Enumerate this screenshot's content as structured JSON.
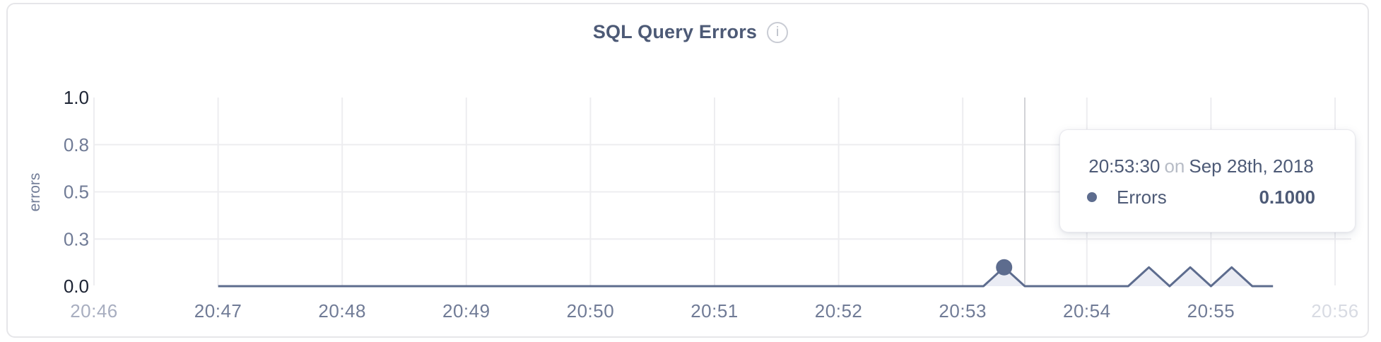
{
  "panel": {
    "title": "SQL Query Errors",
    "info_icon_glyph": "i"
  },
  "colors": {
    "accent": "#5d6c8e",
    "area_fill": "#eaecf4",
    "grid": "#ededf0",
    "crosshair": "#d2d3d7",
    "tick_strong": "#1c2333",
    "tick_normal": "#707b96",
    "tick_muted": "#a8aec0",
    "tick_faint": "#d8dbe3",
    "title_text": "#4d5a76",
    "tooltip_connector": "#b7bcc6"
  },
  "tooltip": {
    "time": "20:53:30",
    "connector": "on",
    "date": "Sep 28th, 2018",
    "series_label": "Errors",
    "value": "0.1000"
  },
  "chart_data": {
    "type": "line",
    "title": "SQL Query Errors",
    "xlabel": "",
    "ylabel": "errors",
    "ylim": [
      0,
      1
    ],
    "grid": true,
    "legend_position": "tooltip-only",
    "y_ticks": [
      {
        "value": 0,
        "label": "0.0",
        "tone": "strong"
      },
      {
        "value": 0.25,
        "label": "0.3",
        "tone": "normal"
      },
      {
        "value": 0.5,
        "label": "0.5",
        "tone": "normal"
      },
      {
        "value": 0.75,
        "label": "0.8",
        "tone": "normal"
      },
      {
        "value": 1,
        "label": "1.0",
        "tone": "strong"
      }
    ],
    "x_axis": {
      "ticks": [
        {
          "label": "20:46",
          "tone": "muted"
        },
        {
          "label": "20:47",
          "tone": "normal"
        },
        {
          "label": "20:48",
          "tone": "normal"
        },
        {
          "label": "20:49",
          "tone": "normal"
        },
        {
          "label": "20:50",
          "tone": "normal"
        },
        {
          "label": "20:51",
          "tone": "normal"
        },
        {
          "label": "20:52",
          "tone": "normal"
        },
        {
          "label": "20:53",
          "tone": "normal"
        },
        {
          "label": "20:54",
          "tone": "normal"
        },
        {
          "label": "20:55",
          "tone": "normal"
        },
        {
          "label": "20:56",
          "tone": "faint"
        }
      ]
    },
    "series": [
      {
        "name": "Errors",
        "points": [
          {
            "time": "20:47:00",
            "value": 0
          },
          {
            "time": "20:53:10",
            "value": 0
          },
          {
            "time": "20:53:20",
            "value": 0.1
          },
          {
            "time": "20:53:30",
            "value": 0
          },
          {
            "time": "20:54:20",
            "value": 0
          },
          {
            "time": "20:54:30",
            "value": 0.1
          },
          {
            "time": "20:54:40",
            "value": 0
          },
          {
            "time": "20:54:50",
            "value": 0.1
          },
          {
            "time": "20:55:00",
            "value": 0
          },
          {
            "time": "20:55:10",
            "value": 0.1
          },
          {
            "time": "20:55:20",
            "value": 0
          },
          {
            "time": "20:55:30",
            "value": 0
          }
        ]
      }
    ],
    "hover": {
      "marker_time": "20:53:20",
      "marker_value": 0.1,
      "crosshair_time": "20:53:30"
    }
  }
}
